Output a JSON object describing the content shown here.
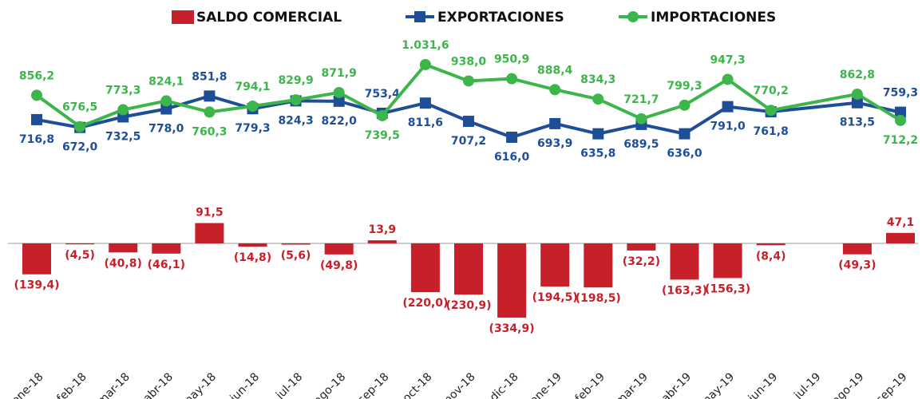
{
  "chart_data": {
    "type": "line",
    "categories": [
      "ene-18",
      "feb-18",
      "mar-18",
      "abr-18",
      "may-18",
      "jun-18",
      "jul-18",
      "ago-18",
      "sep-18",
      "oct-18",
      "nov-18",
      "dic-18",
      "ene-19",
      "feb-19",
      "mar-19",
      "abr-19",
      "may-19",
      "jun-19",
      "jul-19",
      "ago-19",
      "sep-19"
    ],
    "ylim": [
      500,
      1100
    ],
    "y2lim": [
      -350,
      120
    ],
    "series": [
      {
        "name": "SALDO COMERCIAL",
        "type": "bar",
        "axis": "y2",
        "color": "#c8202a",
        "values": [
          -139.4,
          -4.5,
          -40.8,
          -46.1,
          91.5,
          -14.8,
          -5.6,
          -49.8,
          13.9,
          -220.0,
          -230.9,
          -334.9,
          -194.5,
          -198.5,
          -32.2,
          -163.3,
          -156.3,
          -8.4,
          null,
          -49.3,
          47.1
        ],
        "value_labels": [
          "(139,4)",
          "(4,5)",
          "(40,8)",
          "(46,1)",
          "91,5",
          "(14,8)",
          "(5,6)",
          "(49,8)",
          "13,9",
          "(220,0)",
          "(230,9)",
          "(334,9)",
          "(194,5)",
          "(198,5)",
          "(32,2)",
          "(163,3)",
          "(156,3)",
          "(8,4)",
          null,
          "(49,3)",
          "47,1"
        ]
      },
      {
        "name": "EXPORTACIONES",
        "type": "line",
        "color": "#1f4e99",
        "marker": "square",
        "values": [
          716.8,
          672.0,
          732.5,
          778.0,
          851.8,
          779.3,
          824.3,
          822.0,
          753.4,
          811.6,
          707.2,
          616.0,
          693.9,
          635.8,
          689.5,
          636.0,
          791.0,
          761.8,
          null,
          813.5,
          759.3
        ],
        "value_labels": [
          "716,8",
          "672,0",
          "732,5",
          "778,0",
          "851,8",
          "779,3",
          "824,3",
          "822,0",
          "753,4",
          "811,6",
          "707,2",
          "616,0",
          "693,9",
          "635,8",
          "689,5",
          "636,0",
          "791,0",
          "761,8",
          null,
          "813,5",
          "759,3"
        ]
      },
      {
        "name": "IMPORTACIONES",
        "type": "line",
        "color": "#3cb54a",
        "marker": "circle",
        "values": [
          856.2,
          676.5,
          773.3,
          824.1,
          760.3,
          794.1,
          829.9,
          871.9,
          739.5,
          1031.6,
          938.0,
          950.9,
          888.4,
          834.3,
          721.7,
          799.3,
          947.3,
          770.2,
          null,
          862.8,
          712.2
        ],
        "value_labels": [
          "856,2",
          "676,5",
          "773,3",
          "824,1",
          "760,3",
          "794,1",
          "829,9",
          "871,9",
          "739,5",
          "1.031,6",
          "938,0",
          "950,9",
          "888,4",
          "834,3",
          "721,7",
          "799,3",
          "947,3",
          "770,2",
          null,
          "862,8",
          "712,2"
        ]
      }
    ]
  }
}
